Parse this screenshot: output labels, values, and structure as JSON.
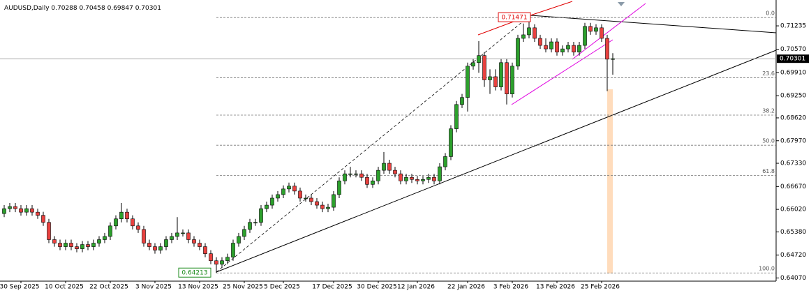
{
  "chart_data": {
    "type": "candlestick",
    "symbol": "AUDUSD,Daily",
    "up_color": "#2ca02c",
    "down_color": "#e8413f",
    "ylim": [
      0.6398,
      0.7197
    ],
    "yticks": [
      0.71235,
      {
        "value": 0.7057,
        "label": "0.70570"
      },
      {
        "value": 0.6991,
        "label": "0.69910"
      },
      {
        "value": 0.6925,
        "label": "0.69250"
      },
      {
        "value": 0.6862,
        "label": "0.68620"
      },
      {
        "value": 0.6797,
        "label": "0.67970"
      },
      {
        "value": 0.6733,
        "label": "0.67330"
      },
      {
        "value": 0.6667,
        "label": "0.66670"
      },
      {
        "value": 0.6602,
        "label": "0.66020"
      },
      {
        "value": 0.6538,
        "label": "0.65380"
      },
      {
        "value": 0.6472,
        "label": "0.64720"
      },
      {
        "value": 0.6407,
        "label": "0.64070"
      }
    ],
    "categories": [
      null,
      null,
      null,
      "30 Sep 2025",
      null,
      null,
      null,
      null,
      null,
      null,
      null,
      "10 Oct 2025",
      null,
      null,
      null,
      null,
      null,
      null,
      null,
      "22 Oct 2025",
      null,
      null,
      null,
      null,
      null,
      null,
      null,
      "3 Nov 2025",
      null,
      null,
      null,
      null,
      null,
      null,
      null,
      "13 Nov 2025",
      null,
      null,
      null,
      null,
      null,
      null,
      null,
      "25 Nov 2025",
      null,
      null,
      null,
      null,
      null,
      null,
      "5 Dec 2025",
      null,
      null,
      null,
      null,
      null,
      null,
      null,
      null,
      "17 Dec 2025",
      null,
      null,
      null,
      null,
      null,
      null,
      null,
      "30 Dec 2025",
      null,
      null,
      null,
      null,
      null,
      null,
      "12 Jan 2026",
      null,
      null,
      null,
      null,
      null,
      null,
      null,
      null,
      "22 Jan 2026",
      null,
      null,
      null,
      null,
      null,
      null,
      null,
      "3 Feb 2026",
      null,
      null,
      null,
      null,
      null,
      null,
      null,
      "13 Feb 2026",
      null,
      null,
      null,
      null,
      null,
      null,
      null,
      "25 Feb 2026",
      null,
      null
    ],
    "candles": {
      "open": [
        0.659,
        0.6604,
        0.661,
        0.6604,
        0.6594,
        0.6604,
        0.6594,
        0.6585,
        0.6565,
        0.6516,
        0.6506,
        0.6496,
        0.6506,
        0.6496,
        0.649,
        0.6502,
        0.6496,
        0.6506,
        0.6516,
        0.6525,
        0.6555,
        0.6575,
        0.6594,
        0.6575,
        0.6555,
        0.6545,
        0.6506,
        0.6496,
        0.6486,
        0.6496,
        0.6516,
        0.6525,
        0.6535,
        0.6535,
        0.6516,
        0.6506,
        0.6496,
        0.6476,
        0.6456,
        0.6446,
        0.6456,
        0.6466,
        0.6506,
        0.6525,
        0.6545,
        0.6565,
        0.6565,
        0.6604,
        0.6614,
        0.6634,
        0.6644,
        0.666,
        0.6668,
        0.6654,
        0.6634,
        0.6634,
        0.6624,
        0.6614,
        0.6604,
        0.6608,
        0.6644,
        0.6683,
        0.6703,
        0.6703,
        0.6703,
        0.6693,
        0.6673,
        0.6683,
        0.6713,
        0.6733,
        0.6713,
        0.6703,
        0.6683,
        0.6693,
        0.6687,
        0.6683,
        0.6687,
        0.6693,
        0.6683,
        0.6723,
        0.6752,
        0.6831,
        0.69,
        0.692,
        0.7009,
        0.7019,
        0.7039,
        0.697,
        0.6979,
        0.695,
        0.7019,
        0.693,
        0.7009,
        0.7088,
        0.7098,
        0.7118,
        0.7088,
        0.7068,
        0.7058,
        0.7078,
        0.7049,
        0.7058,
        0.7068,
        0.7049,
        0.7068,
        0.7122,
        0.7108,
        0.7118,
        0.7088,
        0.70288
      ],
      "high": [
        0.6614,
        0.662,
        0.662,
        0.6614,
        0.6614,
        0.6614,
        0.6604,
        0.6595,
        0.6575,
        0.6526,
        0.6516,
        0.6516,
        0.6516,
        0.6506,
        0.6512,
        0.6512,
        0.6516,
        0.6526,
        0.6535,
        0.6565,
        0.6585,
        0.662,
        0.6604,
        0.6585,
        0.6565,
        0.6555,
        0.6516,
        0.6506,
        0.6506,
        0.6526,
        0.6535,
        0.658,
        0.6545,
        0.6545,
        0.6526,
        0.6516,
        0.6506,
        0.6486,
        0.6466,
        0.6466,
        0.6476,
        0.6516,
        0.6535,
        0.6555,
        0.6575,
        0.6575,
        0.6614,
        0.6624,
        0.6644,
        0.6654,
        0.667,
        0.6678,
        0.6678,
        0.6664,
        0.6644,
        0.6644,
        0.6634,
        0.6624,
        0.6618,
        0.6654,
        0.6693,
        0.6713,
        0.6723,
        0.6713,
        0.6713,
        0.6703,
        0.6693,
        0.6723,
        0.6765,
        0.6743,
        0.6723,
        0.6713,
        0.6703,
        0.6703,
        0.6697,
        0.6697,
        0.6703,
        0.6703,
        0.6733,
        0.6762,
        0.6841,
        0.691,
        0.693,
        0.7019,
        0.7029,
        0.708,
        0.7049,
        0.7,
        0.7,
        0.7029,
        0.7029,
        0.7019,
        0.7098,
        0.713,
        0.71471,
        0.7128,
        0.7098,
        0.7088,
        0.7088,
        0.7088,
        0.7068,
        0.7078,
        0.7078,
        0.7078,
        0.7132,
        0.7132,
        0.7128,
        0.7128,
        0.7098,
        0.70458
      ],
      "low": [
        0.658,
        0.6594,
        0.6594,
        0.6584,
        0.6584,
        0.6584,
        0.6575,
        0.6555,
        0.6506,
        0.6496,
        0.6486,
        0.6486,
        0.6486,
        0.648,
        0.648,
        0.6486,
        0.6486,
        0.6496,
        0.6506,
        0.6515,
        0.6545,
        0.6565,
        0.6565,
        0.6545,
        0.6535,
        0.6496,
        0.6486,
        0.6476,
        0.6476,
        0.6486,
        0.6506,
        0.6515,
        0.6525,
        0.6506,
        0.6496,
        0.6486,
        0.6466,
        0.6446,
        0.64213,
        0.6436,
        0.6446,
        0.6456,
        0.6496,
        0.6515,
        0.6535,
        0.6555,
        0.6555,
        0.6594,
        0.6604,
        0.6624,
        0.6634,
        0.665,
        0.6644,
        0.6624,
        0.6624,
        0.6614,
        0.6604,
        0.6594,
        0.6594,
        0.6598,
        0.6634,
        0.6673,
        0.6693,
        0.6693,
        0.6683,
        0.6663,
        0.6663,
        0.6673,
        0.6703,
        0.6703,
        0.6693,
        0.6673,
        0.6673,
        0.6677,
        0.6673,
        0.6673,
        0.6677,
        0.6673,
        0.6673,
        0.6713,
        0.6742,
        0.6821,
        0.689,
        0.688,
        0.6999,
        0.699,
        0.695,
        0.693,
        0.694,
        0.694,
        0.69,
        0.692,
        0.6999,
        0.7078,
        0.7088,
        0.7078,
        0.7058,
        0.7048,
        0.7048,
        0.7039,
        0.7039,
        0.7048,
        0.7039,
        0.7039,
        0.7058,
        0.7098,
        0.7098,
        0.7078,
        0.6938,
        0.69847
      ],
      "close": [
        0.6604,
        0.661,
        0.6604,
        0.6594,
        0.6604,
        0.6594,
        0.6585,
        0.6565,
        0.6516,
        0.6506,
        0.6496,
        0.6506,
        0.6496,
        0.649,
        0.6502,
        0.6496,
        0.6506,
        0.6516,
        0.6525,
        0.6555,
        0.6575,
        0.6594,
        0.6575,
        0.6555,
        0.6545,
        0.6506,
        0.6496,
        0.6486,
        0.6496,
        0.6516,
        0.6525,
        0.6535,
        0.6535,
        0.6516,
        0.6506,
        0.6496,
        0.6476,
        0.6456,
        0.6446,
        0.6456,
        0.6466,
        0.6506,
        0.6525,
        0.6545,
        0.6565,
        0.6565,
        0.6604,
        0.6614,
        0.6634,
        0.6644,
        0.666,
        0.6668,
        0.6654,
        0.6634,
        0.6634,
        0.6624,
        0.6614,
        0.6604,
        0.6608,
        0.6644,
        0.6683,
        0.6703,
        0.6703,
        0.6703,
        0.6693,
        0.6673,
        0.6683,
        0.6713,
        0.6733,
        0.6713,
        0.6703,
        0.6683,
        0.6693,
        0.6687,
        0.6683,
        0.6687,
        0.6693,
        0.6683,
        0.6723,
        0.6752,
        0.6831,
        0.69,
        0.692,
        0.7009,
        0.7019,
        0.7039,
        0.697,
        0.6979,
        0.695,
        0.7019,
        0.693,
        0.7009,
        0.7088,
        0.7098,
        0.7118,
        0.7088,
        0.7068,
        0.7058,
        0.7078,
        0.7049,
        0.7058,
        0.7068,
        0.7049,
        0.7068,
        0.7122,
        0.7108,
        0.7118,
        0.7088,
        0.70288,
        0.70301
      ]
    },
    "fibonacci": {
      "high": 0.71471,
      "low": 0.64213,
      "levels": [
        {
          "value": 0,
          "label": "0.0"
        },
        23.6,
        38.2,
        {
          "value": 50,
          "label": "50.0"
        },
        61.8,
        {
          "value": 100,
          "label": "100.0"
        }
      ]
    }
  }
}
